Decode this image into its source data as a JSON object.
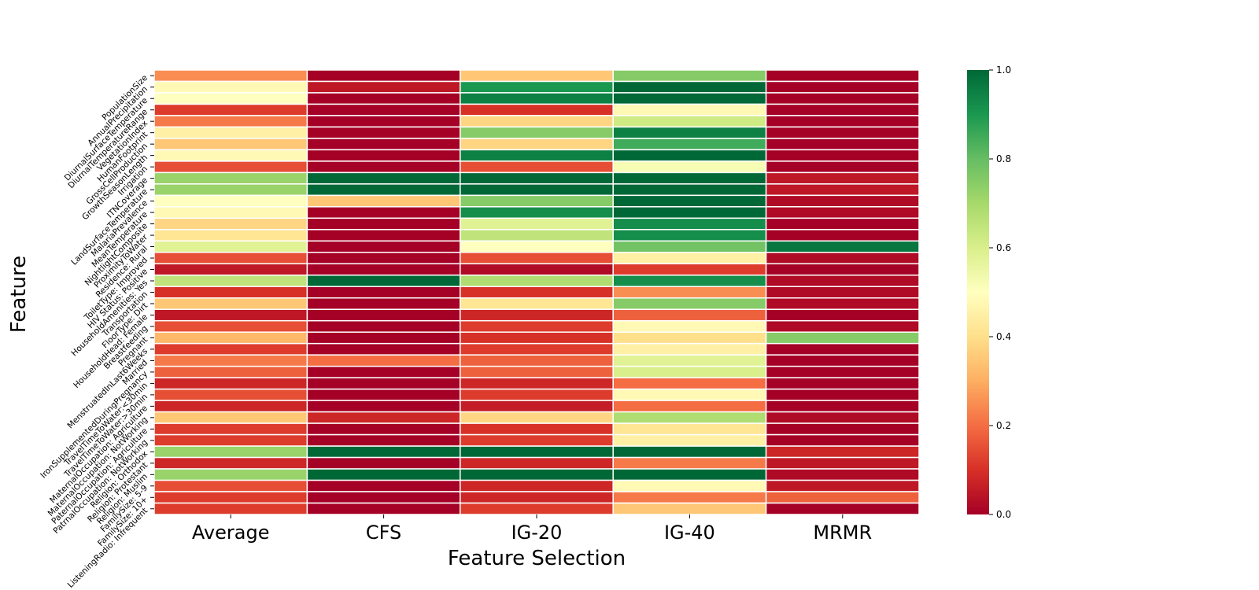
{
  "chart_data": {
    "type": "heatmap",
    "title": "",
    "xlabel": "Feature Selection",
    "ylabel": "Feature",
    "columns": [
      "Average",
      "CFS",
      "IG-20",
      "IG-40",
      "MRMR"
    ],
    "rows": [
      "PopulationSize",
      "AnnualPrecipitation",
      "DiurnalSurfaceTemperature",
      "DiurnalTemperatureRange",
      "VegetationIndex",
      "HumanFootprint",
      "GrossCellProduction",
      "GrowthSeasonLength",
      "Irrigation",
      "ITNCoverage",
      "LandSurfaceTemperature",
      "MalariaPrevalence",
      "MeanTemperature",
      "NightlightComposite",
      "ProximityToWater",
      "Residence: Rural",
      "ToiletType: Improved",
      "HIV Status: Positive",
      "HouseholdAmenities: Yes",
      "Transportation",
      "FloorType: Dirt",
      "HouseholdHead: Female",
      "Breastfeeding",
      "Pregnant",
      "MenstruatedInLast6Weeks",
      "Married",
      "IronSupplementedDuringPregnancy",
      "TravelTimeToWater:<30min",
      "TravelTimeToWater:>30min",
      "MaternalOccupation: Agriculture",
      "MaternalOccupation: NotWorking",
      "PaternalOccupation: Agriculture",
      "PatrnalOccupation: NotWorking",
      "Religion: Orthodox",
      "Religion: Protestant",
      "Religion: Muslim",
      "FamilySize: 5-9",
      "FamilySize: 10+",
      "ListeningRadio: Infrequent"
    ],
    "values": [
      [
        0.25,
        0.0,
        0.35,
        0.75,
        0.0
      ],
      [
        0.48,
        0.05,
        0.9,
        1.0,
        0.0
      ],
      [
        0.5,
        0.0,
        0.95,
        1.0,
        0.0
      ],
      [
        0.12,
        0.0,
        0.1,
        0.48,
        0.0
      ],
      [
        0.22,
        0.0,
        0.38,
        0.62,
        0.0
      ],
      [
        0.45,
        0.0,
        0.75,
        0.95,
        0.0
      ],
      [
        0.35,
        0.0,
        0.38,
        0.85,
        0.0
      ],
      [
        0.48,
        0.0,
        0.95,
        1.0,
        0.0
      ],
      [
        0.15,
        0.0,
        0.15,
        0.52,
        0.0
      ],
      [
        0.72,
        1.0,
        1.0,
        1.0,
        0.05
      ],
      [
        0.72,
        1.0,
        1.0,
        1.0,
        0.05
      ],
      [
        0.5,
        0.35,
        0.75,
        1.0,
        0.02
      ],
      [
        0.48,
        0.0,
        0.92,
        1.0,
        0.02
      ],
      [
        0.38,
        0.0,
        0.58,
        0.92,
        0.0
      ],
      [
        0.42,
        0.0,
        0.65,
        0.92,
        0.0
      ],
      [
        0.58,
        0.0,
        0.5,
        0.78,
        0.97
      ],
      [
        0.15,
        0.0,
        0.15,
        0.45,
        0.02
      ],
      [
        0.05,
        0.0,
        0.02,
        0.12,
        0.0
      ],
      [
        0.65,
        1.0,
        0.68,
        0.92,
        0.02
      ],
      [
        0.1,
        0.0,
        0.1,
        0.25,
        0.02
      ],
      [
        0.35,
        0.0,
        0.42,
        0.75,
        0.02
      ],
      [
        0.05,
        0.0,
        0.08,
        0.18,
        0.0
      ],
      [
        0.15,
        0.0,
        0.12,
        0.48,
        0.02
      ],
      [
        0.32,
        0.0,
        0.1,
        0.4,
        0.75
      ],
      [
        0.12,
        0.0,
        0.12,
        0.45,
        0.0
      ],
      [
        0.22,
        0.2,
        0.18,
        0.58,
        0.0
      ],
      [
        0.18,
        0.0,
        0.18,
        0.6,
        0.0
      ],
      [
        0.08,
        0.0,
        0.08,
        0.2,
        0.0
      ],
      [
        0.15,
        0.0,
        0.12,
        0.48,
        0.0
      ],
      [
        0.08,
        0.0,
        0.06,
        0.2,
        0.0
      ],
      [
        0.35,
        0.08,
        0.38,
        0.68,
        0.02
      ],
      [
        0.12,
        0.0,
        0.1,
        0.42,
        0.0
      ],
      [
        0.12,
        0.0,
        0.12,
        0.45,
        0.0
      ],
      [
        0.72,
        1.0,
        1.0,
        1.0,
        0.08
      ],
      [
        0.08,
        0.0,
        0.08,
        0.22,
        0.05
      ],
      [
        0.72,
        1.0,
        1.0,
        1.0,
        0.02
      ],
      [
        0.15,
        0.0,
        0.08,
        0.48,
        0.05
      ],
      [
        0.12,
        0.0,
        0.08,
        0.22,
        0.18
      ],
      [
        0.12,
        0.0,
        0.12,
        0.35,
        0.0
      ]
    ],
    "colorbar": {
      "min": 0.0,
      "max": 1.0,
      "ticks": [
        "0.0",
        "0.2",
        "0.4",
        "0.6",
        "0.8",
        "1.0"
      ]
    },
    "colormap": "RdYlGn",
    "legend": "colorbar-right",
    "grid": false
  }
}
